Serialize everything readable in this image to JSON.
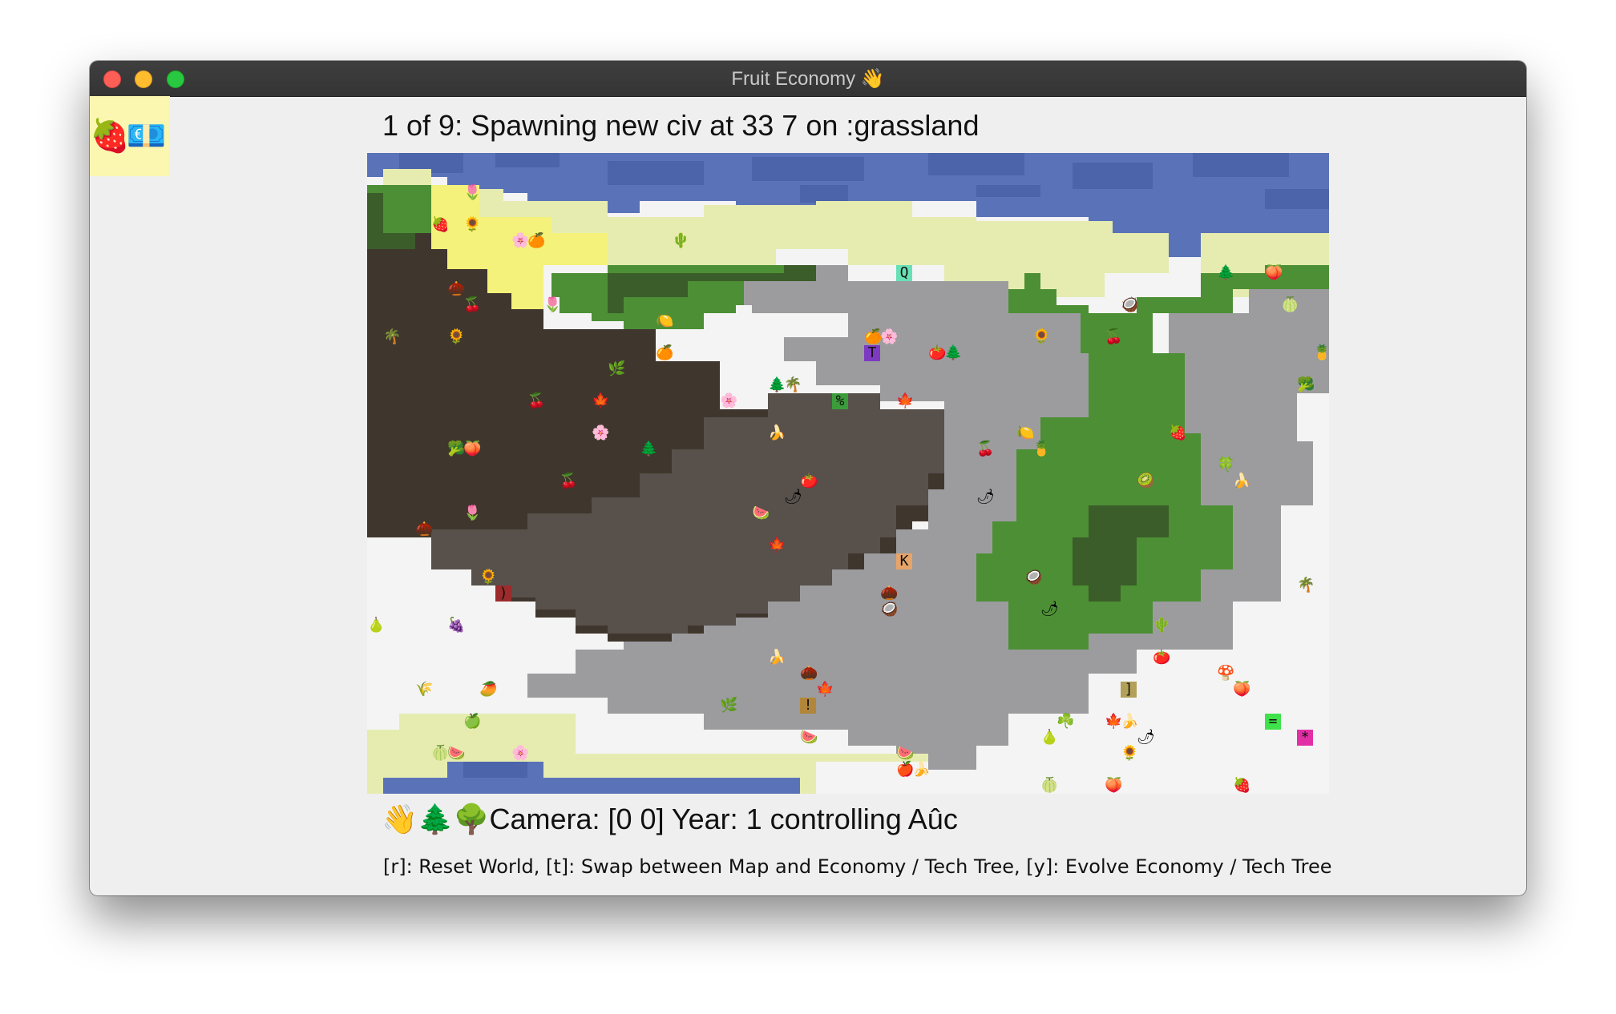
{
  "window": {
    "title": "Fruit Economy 👋"
  },
  "side_panel": {
    "icons": "🍓💶"
  },
  "status": {
    "text": "1 of 9: Spawning new civ at 33 7 on :grassland"
  },
  "map": {
    "colors": {
      "snow": "#f4f4f4",
      "water": "#5a73b8",
      "deep_water": "#4b64aa",
      "sand": "#e6ecb0",
      "desert": "#f4f27a",
      "dirt": "#3f362d",
      "rock": "#57504b",
      "grey": "#9c9c9f",
      "grass": "#4d8f35",
      "forest": "#3b5d29"
    },
    "civ_markers": [
      {
        "symbol": "Q",
        "color": "#67e0b6"
      },
      {
        "symbol": "T",
        "color": "#7d3ac1"
      },
      {
        "symbol": "%",
        "color": "#3b9d3a"
      },
      {
        "symbol": "K",
        "color": "#e6a469"
      },
      {
        "symbol": ")",
        "color": "#9c2b2b"
      },
      {
        "symbol": "!",
        "color": "#b2863a"
      },
      {
        "symbol": "]",
        "color": "#b3a15a"
      },
      {
        "symbol": "=",
        "color": "#3fe24a"
      },
      {
        "symbol": "*",
        "color": "#e22fa6"
      }
    ]
  },
  "camera": {
    "text": "👋🌲🌳Camera: [0 0] Year: 1 controlling Aûc"
  },
  "help": {
    "text": "[r]: Reset World, [t]: Swap between Map and Economy / Tech Tree, [y]: Evolve Economy / Tech Tree"
  }
}
